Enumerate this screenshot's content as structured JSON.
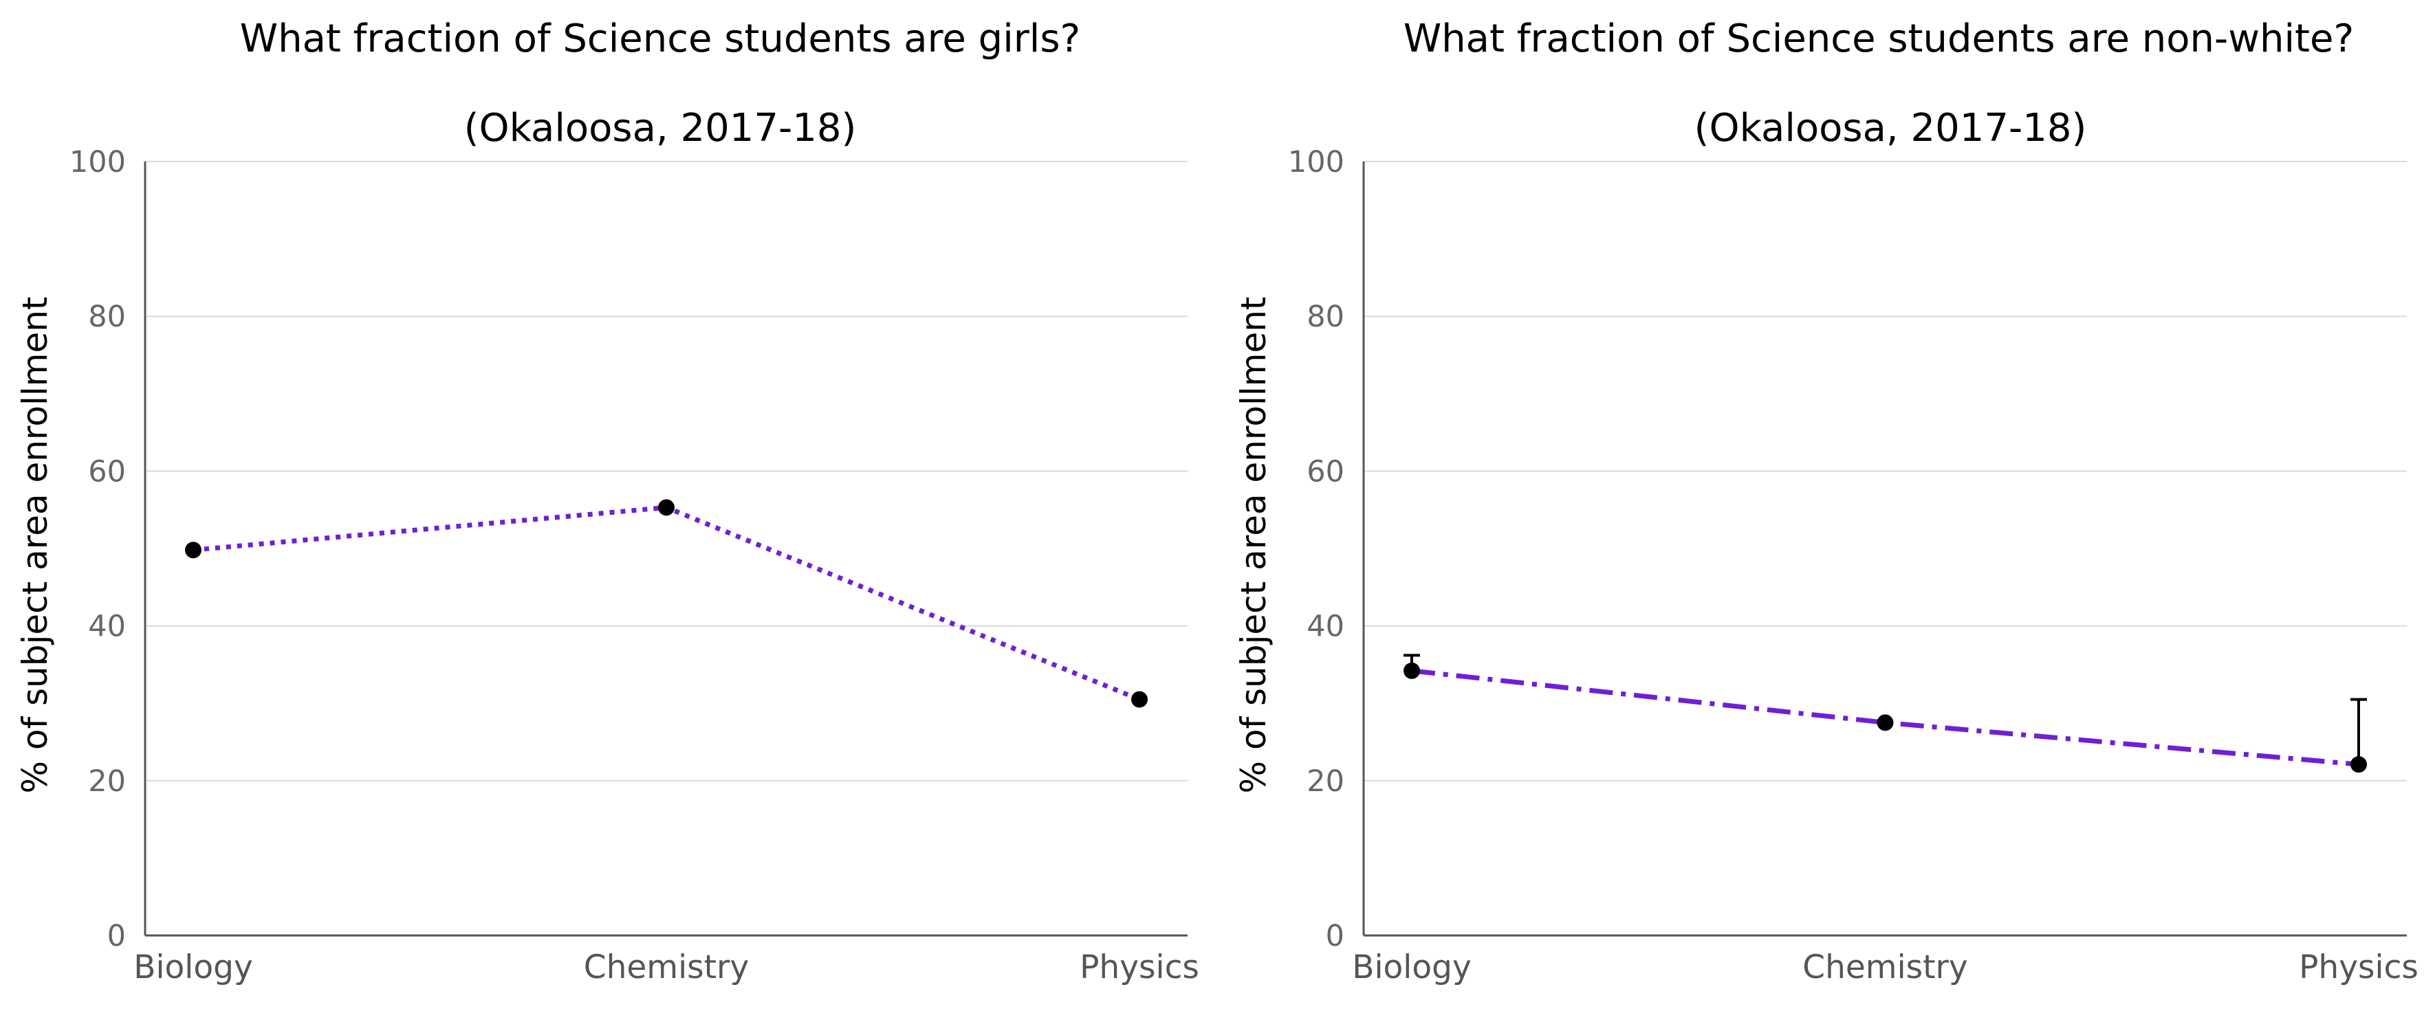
{
  "chart_data": [
    {
      "type": "line",
      "title": "What fraction of Science students are girls?",
      "subtitle": "(Okaloosa, 2017-18)",
      "xlabel": "",
      "ylabel": "% of subject area enrollment",
      "categories": [
        "Biology",
        "Chemistry",
        "Physics"
      ],
      "series": [
        {
          "values": [
            49.8,
            55.3,
            30.5
          ],
          "color": "#6f1fd6",
          "line_style": "dotted"
        }
      ],
      "error_bars": [],
      "ylim": [
        0,
        100
      ],
      "yticks": [
        0,
        20,
        40,
        60,
        80,
        100
      ],
      "grid": "horizontal",
      "legend": "none"
    },
    {
      "type": "line",
      "title": "What fraction of Science students are non-white?",
      "subtitle": "(Okaloosa, 2017-18)",
      "xlabel": "",
      "ylabel": "% of subject area enrollment",
      "categories": [
        "Biology",
        "Chemistry",
        "Physics"
      ],
      "series": [
        {
          "values": [
            34.2,
            27.5,
            22.1
          ],
          "color": "#6f1fd6",
          "line_style": "dashdot"
        }
      ],
      "error_bars": [
        {
          "category": "Biology",
          "upper": 36.2
        },
        {
          "category": "Physics",
          "upper": 30.5
        }
      ],
      "ylim": [
        0,
        100
      ],
      "yticks": [
        0,
        20,
        40,
        60,
        80,
        100
      ],
      "grid": "horizontal",
      "legend": "none"
    }
  ]
}
